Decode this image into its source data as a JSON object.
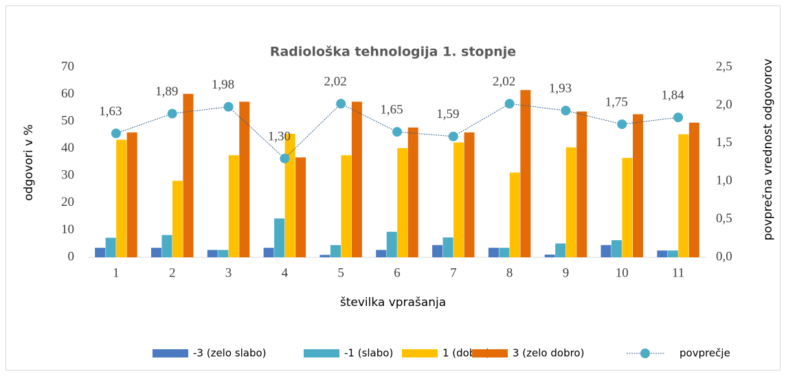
{
  "chart_data": {
    "type": "bar_line",
    "title": "Radiološka tehnologija 1. stopnje",
    "xlabel": "številka vprašanja",
    "ylabel": "odgovori v %",
    "y2label": "povprečna vrednost odgovorov",
    "categories": [
      "1",
      "2",
      "3",
      "4",
      "5",
      "6",
      "7",
      "8",
      "9",
      "10",
      "11"
    ],
    "series": [
      {
        "name": "-3 (zelo slabo)",
        "color": "#4a7ac2",
        "values": [
          3.5,
          3.5,
          2.7,
          3.5,
          0.9,
          2.7,
          4.5,
          3.5,
          1.0,
          4.5,
          2.5
        ]
      },
      {
        "name": "-1 (slabo)",
        "color": "#4bacc6",
        "values": [
          7.2,
          8.2,
          2.7,
          14.3,
          4.5,
          9.4,
          7.3,
          3.5,
          5.1,
          6.3,
          2.5
        ]
      },
      {
        "name": "1 (dobro)",
        "color": "#ffc000",
        "values": [
          43.3,
          28.2,
          37.6,
          45.5,
          37.6,
          40.2,
          42.3,
          31.2,
          40.5,
          36.6,
          45.3
        ]
      },
      {
        "name": "3 (zelo dobro)",
        "color": "#e36c09",
        "values": [
          46.0,
          60.2,
          57.3,
          36.8,
          57.3,
          47.8,
          46.0,
          61.6,
          53.7,
          52.7,
          49.6
        ]
      },
      {
        "name": "povprečje",
        "color": "#4bacc6",
        "line_color": "#2e5c8a",
        "axis": "y2",
        "values": [
          1.63,
          1.89,
          1.98,
          1.3,
          2.02,
          1.65,
          1.59,
          2.02,
          1.93,
          1.75,
          1.84
        ],
        "value_labels": [
          "1,63",
          "1,89",
          "1,98",
          "1,30",
          "2,02",
          "1,65",
          "1,59",
          "2,02",
          "1,93",
          "1,75",
          "1,84"
        ]
      }
    ],
    "ylim": [
      0,
      70
    ],
    "yticks": [
      0,
      10,
      20,
      30,
      40,
      50,
      60,
      70
    ],
    "y2lim": [
      0,
      2.5
    ],
    "y2ticks": [
      {
        "value": 0,
        "label": "0,0"
      },
      {
        "value": 0.5,
        "label": "0,5"
      },
      {
        "value": 1,
        "label": "1,0"
      },
      {
        "value": 1.5,
        "label": "1,5"
      },
      {
        "value": 2,
        "label": "2,0"
      },
      {
        "value": 2.5,
        "label": "2,5"
      }
    ],
    "grid": false,
    "legend": "bottom"
  }
}
